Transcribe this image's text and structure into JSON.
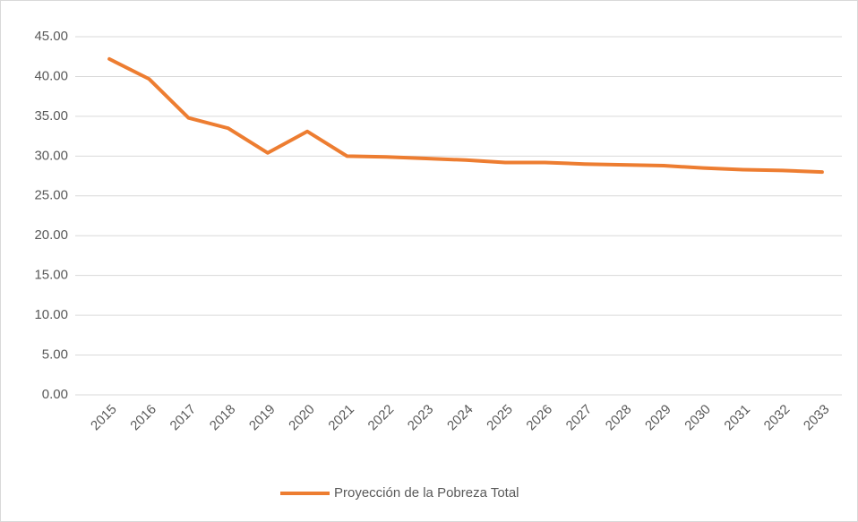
{
  "chart_data": {
    "type": "line",
    "categories": [
      "2015",
      "2016",
      "2017",
      "2018",
      "2019",
      "2020",
      "2021",
      "2022",
      "2023",
      "2024",
      "2025",
      "2026",
      "2027",
      "2028",
      "2029",
      "2030",
      "2031",
      "2032",
      "2033"
    ],
    "series": [
      {
        "name": "Proyección de la Pobreza Total",
        "color": "#ed7d31",
        "values": [
          42.2,
          39.7,
          34.8,
          33.5,
          30.4,
          33.1,
          30.0,
          29.9,
          29.7,
          29.5,
          29.2,
          29.2,
          29.0,
          28.9,
          28.8,
          28.5,
          28.3,
          28.2,
          28.0
        ]
      }
    ],
    "ylim": [
      0,
      45
    ],
    "yticks": [
      {
        "value": 0,
        "label": "0.00"
      },
      {
        "value": 5,
        "label": "5.00"
      },
      {
        "value": 10,
        "label": "10.00"
      },
      {
        "value": 15,
        "label": "15.00"
      },
      {
        "value": 20,
        "label": "20.00"
      },
      {
        "value": 25,
        "label": "25.00"
      },
      {
        "value": 30,
        "label": "30.00"
      },
      {
        "value": 35,
        "label": "35.00"
      },
      {
        "value": 40,
        "label": "40.00"
      },
      {
        "value": 45,
        "label": "45.00"
      }
    ],
    "grid": true,
    "legend": "bottom"
  }
}
